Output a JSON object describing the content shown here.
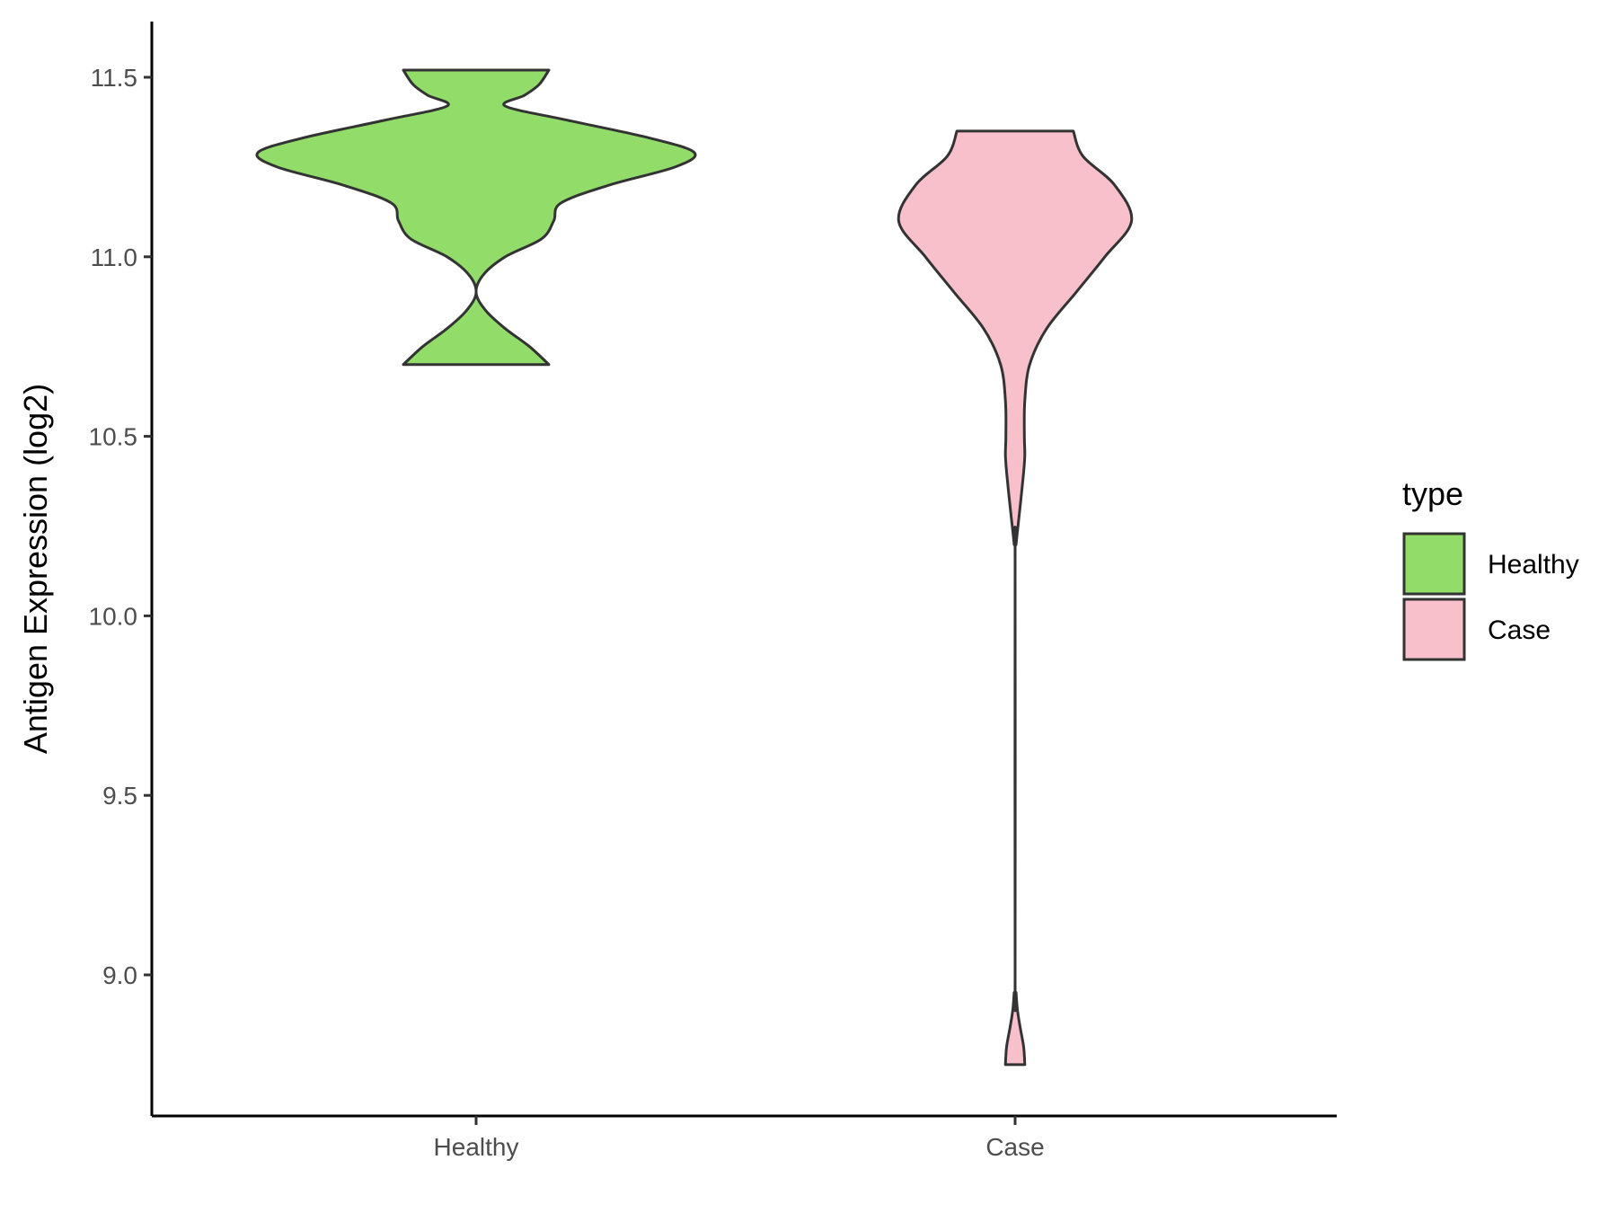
{
  "chart_data": {
    "type": "violin",
    "ylabel": "Antigen Expression (log2)",
    "xlabel": "",
    "ylim": [
      8.62,
      11.66
    ],
    "y_ticks": [
      9.0,
      9.5,
      10.0,
      10.5,
      11.0,
      11.5
    ],
    "y_tick_labels": [
      "9.0",
      "9.5",
      "10.0",
      "10.5",
      "11.0",
      "11.5"
    ],
    "categories": [
      "Healthy",
      "Case"
    ],
    "grid": false,
    "legend": {
      "title": "type",
      "position": "right",
      "entries": [
        {
          "label": "Healthy",
          "color": "#92dd6a"
        },
        {
          "label": "Case",
          "color": "#f8c0cb"
        }
      ]
    },
    "series": [
      {
        "category": "Healthy",
        "color": "#92dd6a",
        "min": 10.7,
        "max": 11.52,
        "density_profile": [
          [
            10.7,
            0.3
          ],
          [
            10.75,
            0.22
          ],
          [
            10.8,
            0.12
          ],
          [
            10.85,
            0.04
          ],
          [
            10.9,
            0.0
          ],
          [
            10.95,
            0.03
          ],
          [
            11.0,
            0.12
          ],
          [
            11.05,
            0.27
          ],
          [
            11.1,
            0.32
          ],
          [
            11.15,
            0.35
          ],
          [
            11.2,
            0.55
          ],
          [
            11.25,
            0.82
          ],
          [
            11.29,
            0.9
          ],
          [
            11.33,
            0.72
          ],
          [
            11.38,
            0.38
          ],
          [
            11.42,
            0.12
          ],
          [
            11.45,
            0.2
          ],
          [
            11.48,
            0.26
          ],
          [
            11.52,
            0.3
          ]
        ]
      },
      {
        "category": "Case",
        "color": "#f8c0cb",
        "min": 8.75,
        "max": 11.35,
        "density_profile": [
          [
            8.75,
            0.04
          ],
          [
            8.8,
            0.035
          ],
          [
            8.85,
            0.022
          ],
          [
            8.9,
            0.01
          ],
          [
            8.95,
            0.004
          ],
          [
            9.0,
            0.0
          ],
          [
            10.15,
            0.0
          ],
          [
            10.2,
            0.004
          ],
          [
            10.3,
            0.02
          ],
          [
            10.4,
            0.035
          ],
          [
            10.45,
            0.04
          ],
          [
            10.5,
            0.038
          ],
          [
            10.6,
            0.04
          ],
          [
            10.7,
            0.06
          ],
          [
            10.8,
            0.13
          ],
          [
            10.9,
            0.25
          ],
          [
            11.0,
            0.37
          ],
          [
            11.1,
            0.48
          ],
          [
            11.2,
            0.41
          ],
          [
            11.28,
            0.28
          ],
          [
            11.35,
            0.24
          ]
        ]
      }
    ]
  }
}
